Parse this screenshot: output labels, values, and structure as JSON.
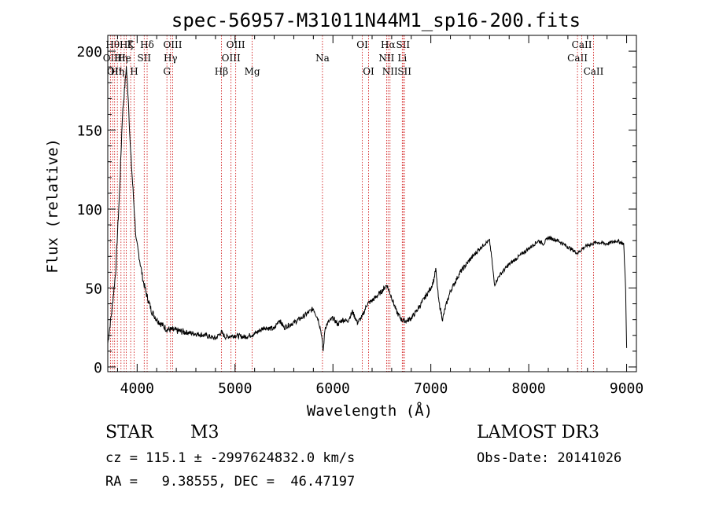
{
  "chart_data": {
    "type": "line",
    "title": "spec-56957-M31011N44M1_sp16-200.fits",
    "xlabel": "Wavelength (Å)",
    "ylabel": "Flux (relative)",
    "xlim": [
      3700,
      9100
    ],
    "ylim": [
      -3,
      210
    ],
    "xticks": [
      4000,
      5000,
      6000,
      7000,
      8000,
      9000
    ],
    "xtick_labels": [
      "4000",
      "5000",
      "6000",
      "7000",
      "8000",
      "9000"
    ],
    "yticks": [
      0,
      50,
      100,
      150,
      200
    ],
    "ytick_labels": [
      "0",
      "50",
      "100",
      "150",
      "200"
    ],
    "series": [
      {
        "name": "spectrum",
        "x": [
          3700,
          3740,
          3780,
          3820,
          3850,
          3870,
          3890,
          3910,
          3930,
          3950,
          3970,
          3990,
          4020,
          4060,
          4100,
          4150,
          4200,
          4250,
          4300,
          4400,
          4500,
          4600,
          4700,
          4800,
          4860,
          4900,
          5000,
          5100,
          5200,
          5300,
          5400,
          5450,
          5500,
          5600,
          5700,
          5800,
          5850,
          5880,
          5900,
          5920,
          5950,
          6000,
          6050,
          6100,
          6150,
          6200,
          6250,
          6300,
          6350,
          6400,
          6450,
          6500,
          6550,
          6600,
          6650,
          6700,
          6750,
          6800,
          6850,
          6900,
          6950,
          7000,
          7030,
          7050,
          7080,
          7120,
          7150,
          7200,
          7300,
          7400,
          7500,
          7550,
          7600,
          7620,
          7650,
          7700,
          7800,
          7900,
          8000,
          8100,
          8150,
          8200,
          8300,
          8400,
          8500,
          8550,
          8600,
          8700,
          8800,
          8900,
          8970,
          8990,
          9000
        ],
        "y": [
          15,
          35,
          60,
          110,
          160,
          175,
          190,
          170,
          140,
          120,
          100,
          80,
          70,
          55,
          45,
          35,
          30,
          27,
          24,
          23,
          22,
          21,
          20,
          18,
          22,
          19,
          20,
          19,
          21,
          25,
          24,
          30,
          25,
          28,
          32,
          37,
          30,
          22,
          10,
          25,
          28,
          31,
          27,
          30,
          29,
          35,
          28,
          32,
          40,
          42,
          45,
          48,
          52,
          44,
          35,
          30,
          29,
          31,
          35,
          40,
          45,
          50,
          55,
          62,
          42,
          30,
          38,
          48,
          60,
          68,
          75,
          78,
          80,
          70,
          52,
          58,
          65,
          70,
          75,
          80,
          78,
          82,
          80,
          76,
          72,
          75,
          77,
          79,
          78,
          80,
          78,
          50,
          12
        ]
      }
    ],
    "lines": [
      {
        "x": 3727,
        "label": "OII",
        "row": 2
      },
      {
        "x": 3750,
        "label": "Hθ",
        "row": 1
      },
      {
        "x": 3770,
        "label": "OII",
        "row": 3
      },
      {
        "x": 3798,
        "label": "Hη",
        "row": 3
      },
      {
        "x": 3835,
        "label": "Hη",
        "row": 2
      },
      {
        "x": 3868,
        "label": "He",
        "row": 2
      },
      {
        "x": 3889,
        "label": "Hζ",
        "row": 1
      },
      {
        "x": 3934,
        "label": "K",
        "row": 1
      },
      {
        "x": 3969,
        "label": "H",
        "row": 3
      },
      {
        "x": 4072,
        "label": "SII",
        "row": 2
      },
      {
        "x": 4102,
        "label": "Hδ",
        "row": 1
      },
      {
        "x": 4304,
        "label": "G",
        "row": 3
      },
      {
        "x": 4341,
        "label": "Hγ",
        "row": 2
      },
      {
        "x": 4363,
        "label": "OIII",
        "row": 1
      },
      {
        "x": 4861,
        "label": "Hβ",
        "row": 3
      },
      {
        "x": 4959,
        "label": "OIII",
        "row": 2
      },
      {
        "x": 5007,
        "label": "OIII",
        "row": 1
      },
      {
        "x": 5175,
        "label": "Mg",
        "row": 3
      },
      {
        "x": 5893,
        "label": "Na",
        "row": 2
      },
      {
        "x": 6300,
        "label": "OI",
        "row": 1
      },
      {
        "x": 6364,
        "label": "OI",
        "row": 3
      },
      {
        "x": 6548,
        "label": "NII",
        "row": 2
      },
      {
        "x": 6563,
        "label": "Hα",
        "row": 1
      },
      {
        "x": 6583,
        "label": "NII",
        "row": 3
      },
      {
        "x": 6708,
        "label": "Li",
        "row": 2
      },
      {
        "x": 6716,
        "label": "SII",
        "row": 1
      },
      {
        "x": 6731,
        "label": "SII",
        "row": 3
      },
      {
        "x": 8498,
        "label": "CaII",
        "row": 2
      },
      {
        "x": 8542,
        "label": "CaII",
        "row": 1
      },
      {
        "x": 8662,
        "label": "CaII",
        "row": 3
      }
    ],
    "colors": {
      "spectrum": "#000000",
      "lines": "#cc0000"
    }
  },
  "info": {
    "class_label": "STAR",
    "subclass": "M3",
    "survey": "LAMOST DR3",
    "cz": "cz = 115.1 ± -2997624832.0 km/s",
    "obs_date": "Obs-Date: 20141026",
    "coords": "RA =   9.38555, DEC =  46.47197"
  }
}
